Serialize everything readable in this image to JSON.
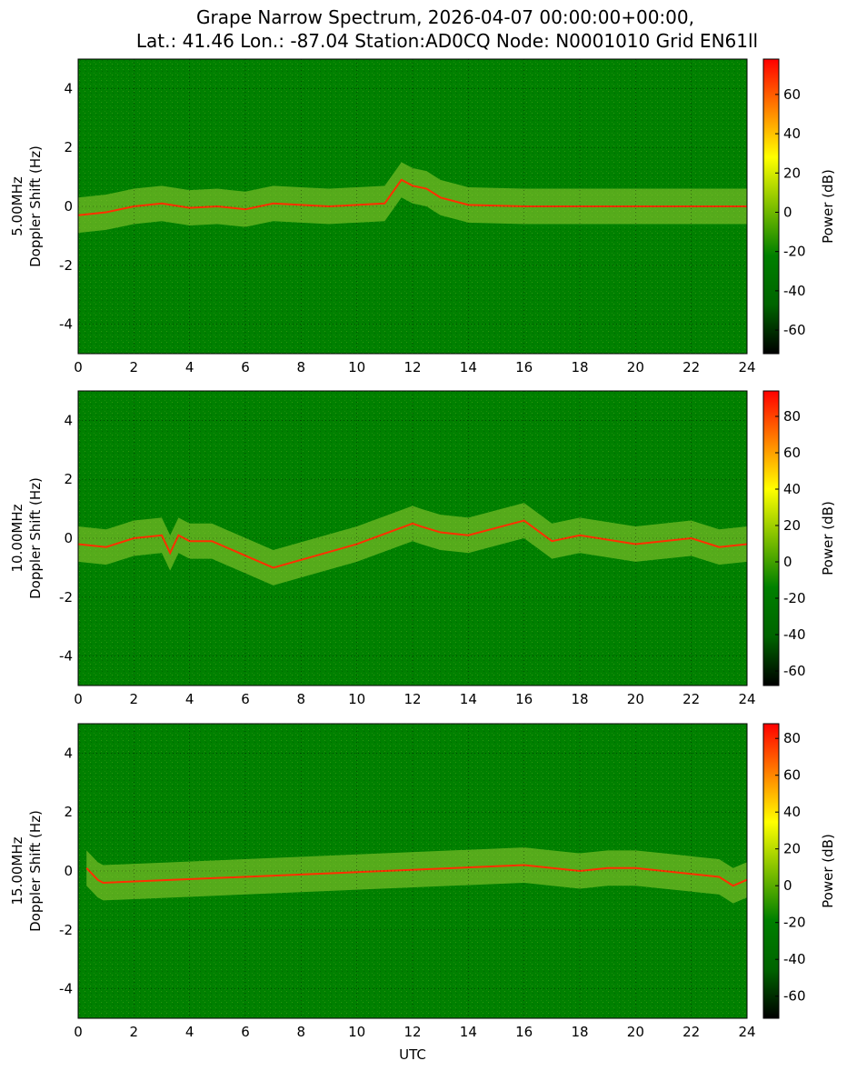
{
  "title_line1": "Grape Narrow Spectrum, 2026-04-07 00:00:00+00:00,",
  "title_line2": "Lat.: 41.46 Lon.: -87.04 Station:AD0CQ Node: N0001010 Grid EN61ll",
  "xlabel": "UTC",
  "colorbar_label": "Power (dB)",
  "colors": {
    "background": "#008000",
    "colormap": [
      "#000000",
      "#006400",
      "#008000",
      "#7fbf00",
      "#ffff00",
      "#ff8000",
      "#ff0000"
    ]
  },
  "chart_data": [
    {
      "type": "heatmap",
      "band_label": "5.00MHz",
      "ylabel": "Doppler Shift (Hz)",
      "xlim": [
        0,
        24
      ],
      "ylim": [
        -5,
        5
      ],
      "xticks": [
        0,
        2,
        4,
        6,
        8,
        10,
        12,
        14,
        16,
        18,
        20,
        22,
        24
      ],
      "yticks": [
        -4,
        -2,
        0,
        2,
        4
      ],
      "grid": true,
      "colorbar": {
        "label": "Power (dB)",
        "range": [
          -72,
          78
        ],
        "ticks": [
          -60,
          -40,
          -20,
          0,
          20,
          40,
          60
        ]
      },
      "doppler_trace": {
        "x": [
          0,
          1,
          2,
          3,
          4,
          5,
          6,
          7,
          8,
          9,
          10,
          11,
          11.6,
          12,
          12.5,
          13,
          14,
          16,
          18,
          20,
          22,
          24
        ],
        "y": [
          -0.3,
          -0.2,
          0.0,
          0.1,
          -0.05,
          0.0,
          -0.1,
          0.1,
          0.05,
          0.0,
          0.05,
          0.1,
          0.9,
          0.7,
          0.6,
          0.3,
          0.05,
          0.0,
          0.0,
          0.0,
          0.0,
          0.0
        ]
      }
    },
    {
      "type": "heatmap",
      "band_label": "10.00MHz",
      "ylabel": "Doppler Shift (Hz)",
      "xlim": [
        0,
        24
      ],
      "ylim": [
        -5,
        5
      ],
      "xticks": [
        0,
        2,
        4,
        6,
        8,
        10,
        12,
        14,
        16,
        18,
        20,
        22,
        24
      ],
      "yticks": [
        -4,
        -2,
        0,
        2,
        4
      ],
      "grid": true,
      "colorbar": {
        "label": "Power (dB)",
        "range": [
          -68,
          94
        ],
        "ticks": [
          -60,
          -40,
          -20,
          0,
          20,
          40,
          60,
          80
        ]
      },
      "doppler_trace": {
        "x": [
          0,
          1,
          2,
          3,
          3.3,
          3.6,
          4,
          4.8,
          7,
          10,
          12,
          12.3,
          13,
          14,
          16,
          17,
          18,
          20,
          22,
          23,
          24
        ],
        "y": [
          -0.2,
          -0.3,
          0.0,
          0.1,
          -0.5,
          0.1,
          -0.1,
          -0.1,
          -1.0,
          -0.2,
          0.5,
          0.4,
          0.2,
          0.1,
          0.6,
          -0.1,
          0.1,
          -0.2,
          0.0,
          -0.3,
          -0.2
        ]
      }
    },
    {
      "type": "heatmap",
      "band_label": "15.00MHz",
      "ylabel": "Doppler Shift (Hz)",
      "xlim": [
        0,
        24
      ],
      "ylim": [
        -5,
        5
      ],
      "xticks": [
        0,
        2,
        4,
        6,
        8,
        10,
        12,
        14,
        16,
        18,
        20,
        22,
        24
      ],
      "yticks": [
        -4,
        -2,
        0,
        2,
        4
      ],
      "grid": true,
      "colorbar": {
        "label": "Power (dB)",
        "range": [
          -72,
          88
        ],
        "ticks": [
          -60,
          -40,
          -20,
          0,
          20,
          40,
          60,
          80
        ]
      },
      "doppler_trace": {
        "x": [
          0.3,
          0.5,
          0.7,
          0.9,
          16,
          17,
          18,
          19,
          20,
          21,
          22,
          23,
          23.5,
          24
        ],
        "y": [
          0.1,
          -0.1,
          -0.3,
          -0.4,
          0.2,
          0.1,
          0.0,
          0.1,
          0.1,
          0.0,
          -0.1,
          -0.2,
          -0.5,
          -0.3
        ]
      }
    }
  ]
}
